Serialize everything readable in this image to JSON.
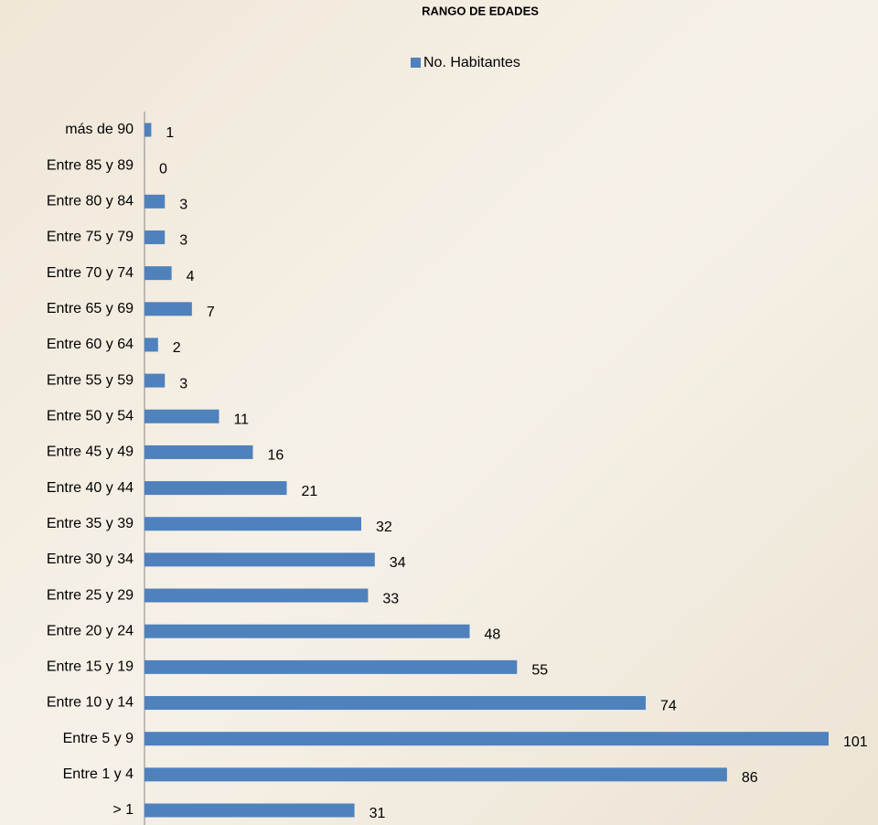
{
  "chart_data": {
    "type": "barh",
    "title": "RANGO DE EDADES",
    "categories": [
      "> 1",
      "Entre 1 y 4",
      "Entre 5 y 9",
      "Entre 10 y 14",
      "Entre 15 y 19",
      "Entre 20 y 24",
      "Entre 25 y 29",
      "Entre 30 y 34",
      "Entre 35 y 39",
      "Entre 40 y 44",
      "Entre 45 y 49",
      "Entre 50 y 54",
      "Entre 55 y 59",
      "Entre 60 y 64",
      "Entre 65 y 69",
      "Entre 70 y 74",
      "Entre 75 y 79",
      "Entre 80 y 84",
      "Entre 85 y 89",
      "más de 90"
    ],
    "series": [
      {
        "name": "No. Habitantes",
        "color": "#4f81bd",
        "values": [
          31,
          86,
          101,
          74,
          55,
          48,
          33,
          34,
          32,
          21,
          16,
          11,
          3,
          2,
          7,
          4,
          3,
          3,
          0,
          1
        ]
      }
    ],
    "legend": "top"
  }
}
